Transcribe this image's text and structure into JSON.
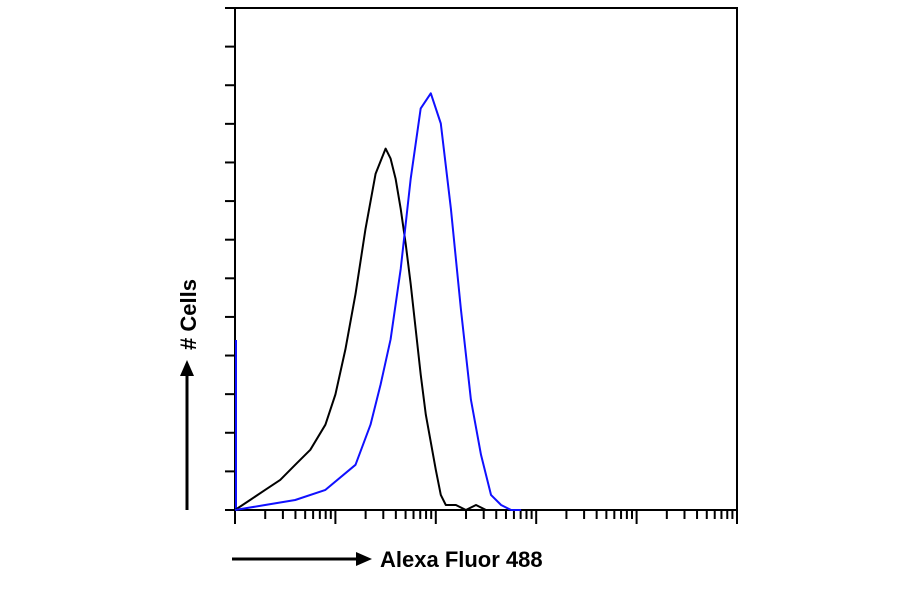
{
  "chart_data": {
    "type": "line",
    "title": "",
    "xlabel": "Alexa Fluor 488",
    "ylabel": "# Cells",
    "x_scale": "log",
    "xlim": [
      0,
      5
    ],
    "ylim": [
      0,
      100
    ],
    "grid": false,
    "legend": "none",
    "series": [
      {
        "color": "#000000",
        "x": [
          0.0,
          0.15,
          0.3,
          0.45,
          0.6,
          0.75,
          0.9,
          1.0,
          1.1,
          1.2,
          1.3,
          1.4,
          1.5,
          1.55,
          1.6,
          1.65,
          1.7,
          1.75,
          1.8,
          1.85,
          1.9,
          2.0,
          2.05,
          2.1,
          2.2,
          2.3,
          2.4,
          2.5,
          2.6,
          2.8
        ],
        "y": [
          0,
          2,
          4,
          6,
          9,
          12,
          17,
          23,
          32,
          43,
          56,
          67,
          72,
          70,
          66,
          60,
          53,
          45,
          36,
          27,
          19,
          8,
          3,
          1,
          1,
          0,
          1,
          0,
          0,
          0
        ]
      },
      {
        "color": "#1010ff",
        "x": [
          0.0,
          0.3,
          0.6,
          0.9,
          1.2,
          1.35,
          1.45,
          1.55,
          1.65,
          1.75,
          1.85,
          1.95,
          2.05,
          2.15,
          2.25,
          2.35,
          2.45,
          2.55,
          2.65,
          2.75,
          2.85
        ],
        "y": [
          0,
          1,
          2,
          4,
          9,
          17,
          25,
          34,
          48,
          66,
          80,
          83,
          77,
          60,
          40,
          22,
          11,
          3,
          1,
          0,
          0
        ]
      }
    ]
  }
}
